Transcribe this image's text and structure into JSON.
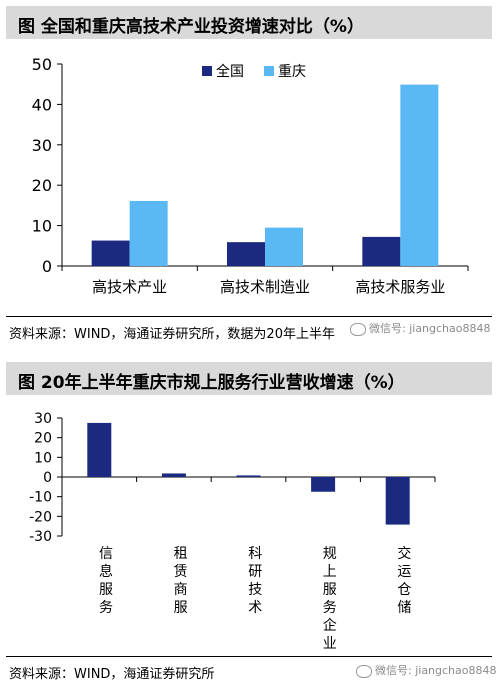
{
  "chart_data": [
    {
      "type": "bar",
      "title": "图 全国和重庆高技术产业投资增速对比（%）",
      "categories": [
        "高技术产业",
        "高技术制造业",
        "高技术服务业"
      ],
      "series": [
        {
          "name": "全国",
          "values": [
            6.3,
            5.9,
            7.2
          ]
        },
        {
          "name": "重庆",
          "values": [
            16.1,
            9.5,
            44.9
          ]
        }
      ],
      "ylim": [
        0,
        50
      ],
      "yticks": [
        0,
        10,
        20,
        30,
        40,
        50
      ],
      "colors": [
        "#1b2a80",
        "#5ab8f5"
      ],
      "legend": "top-center",
      "source": "资料来源：WIND，海通证券研究所，数据为20年上半年"
    },
    {
      "type": "bar",
      "title": "图 20年上半年重庆市规上服务行业营收增速（%）",
      "categories": [
        "信息服务",
        "租赁商服",
        "科研技术",
        "规上服务企业",
        "交运仓储"
      ],
      "values": [
        27.5,
        1.8,
        0.8,
        -7.5,
        -24.2
      ],
      "ylim": [
        -30,
        30
      ],
      "yticks": [
        30,
        20,
        10,
        0,
        -10,
        -20,
        -30
      ],
      "colors": [
        "#1b2a80"
      ],
      "source": "资料来源：WIND，海通证券研究所"
    }
  ],
  "watermark": {
    "label": "微信号: jiangchao8848"
  }
}
